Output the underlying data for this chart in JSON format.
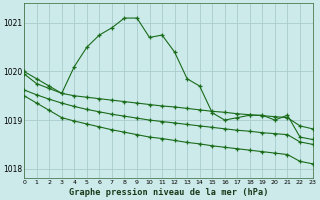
{
  "background_color": "#cceaea",
  "grid_color": "#aacccc",
  "line_color": "#1a6b1a",
  "title": "Graphe pression niveau de la mer (hPa)",
  "xlim": [
    0,
    23
  ],
  "ylim": [
    1017.8,
    1021.4
  ],
  "yticks": [
    1018,
    1019,
    1020,
    1021
  ],
  "xtick_labels": [
    "0",
    "1",
    "2",
    "3",
    "4",
    "5",
    "6",
    "7",
    "8",
    "9",
    "10",
    "11",
    "12",
    "13",
    "14",
    "15",
    "16",
    "17",
    "18",
    "19",
    "20",
    "21",
    "22",
    "23"
  ],
  "x": [
    0,
    1,
    2,
    3,
    4,
    5,
    6,
    7,
    8,
    9,
    10,
    11,
    12,
    13,
    14,
    15,
    16,
    17,
    18,
    19,
    20,
    21,
    22,
    23
  ],
  "series_peak": [
    1020.0,
    1019.85,
    1019.7,
    1019.55,
    1020.1,
    1020.5,
    1020.75,
    1020.9,
    1021.1,
    1021.1,
    1020.7,
    1020.75,
    1020.4,
    1019.85,
    1019.7,
    1019.15,
    1019.0,
    1019.05,
    1019.1,
    1019.1,
    1019.0,
    1019.1,
    1018.65,
    1018.6
  ],
  "series_upper": [
    1019.95,
    1019.75,
    1019.65,
    1019.55,
    1019.5,
    1019.47,
    1019.44,
    1019.41,
    1019.38,
    1019.35,
    1019.32,
    1019.29,
    1019.27,
    1019.24,
    1019.21,
    1019.18,
    1019.16,
    1019.13,
    1019.11,
    1019.09,
    1019.07,
    1019.05,
    1018.88,
    1018.82
  ],
  "series_mid": [
    1019.62,
    1019.52,
    1019.43,
    1019.35,
    1019.28,
    1019.22,
    1019.17,
    1019.12,
    1019.08,
    1019.04,
    1019.0,
    1018.97,
    1018.94,
    1018.91,
    1018.88,
    1018.85,
    1018.82,
    1018.79,
    1018.77,
    1018.74,
    1018.72,
    1018.7,
    1018.55,
    1018.5
  ],
  "series_lower": [
    1019.5,
    1019.35,
    1019.2,
    1019.05,
    1018.98,
    1018.92,
    1018.86,
    1018.8,
    1018.75,
    1018.7,
    1018.65,
    1018.62,
    1018.58,
    1018.54,
    1018.51,
    1018.47,
    1018.44,
    1018.41,
    1018.38,
    1018.35,
    1018.32,
    1018.29,
    1018.15,
    1018.1
  ]
}
